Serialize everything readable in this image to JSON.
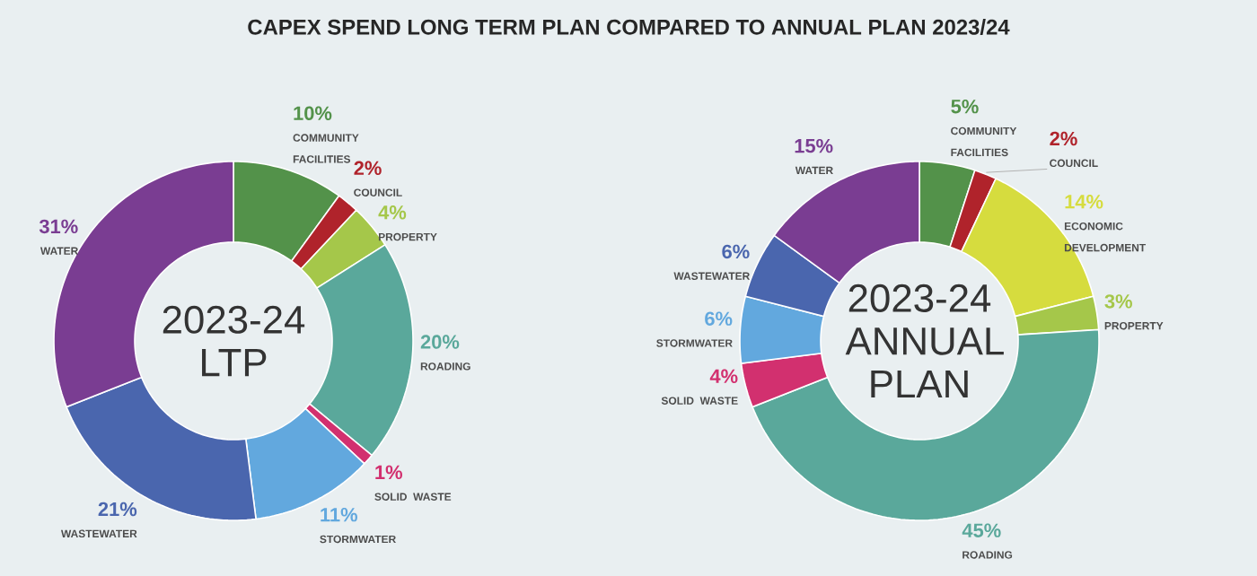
{
  "chart_data": [
    {
      "type": "donut",
      "title": "CAPEX SPEND LONG TERM PLAN COMPARED TO ANNUAL PLAN 2023/24",
      "annotations": [
        "2023-24 LTP"
      ],
      "categories": [
        "COMMUNITY FACILITIES",
        "COUNCIL",
        "PROPERTY",
        "ROADING",
        "SOLID WASTE",
        "STORMWATER",
        "WASTEWATER",
        "WATER"
      ],
      "values": [
        10,
        2,
        4,
        20,
        1,
        11,
        21,
        31
      ],
      "value_labels": [
        "10%",
        "2%",
        "4%",
        "20%",
        "1%",
        "11%",
        "21%",
        "31%"
      ],
      "colors": [
        "#53924a",
        "#b0232b",
        "#a5c74a",
        "#5aa89b",
        "#d2306f",
        "#62a8de",
        "#4a66ae",
        "#7a3d92"
      ]
    },
    {
      "type": "donut",
      "annotations": [
        "2023-24 ANNUAL PLAN"
      ],
      "categories": [
        "COMMUNITY FACILITIES",
        "COUNCIL",
        "ECONOMIC DEVELOPMENT",
        "PROPERTY",
        "ROADING",
        "SOLID WASTE",
        "STORMWATER",
        "WASTEWATER",
        "WATER"
      ],
      "values": [
        5,
        2,
        14,
        3,
        45,
        4,
        6,
        6,
        15
      ],
      "value_labels": [
        "5%",
        "2%",
        "14%",
        "3%",
        "45%",
        "4%",
        "6%",
        "6%",
        "15%"
      ],
      "colors": [
        "#53924a",
        "#b0232b",
        "#d6dc3e",
        "#a5c74a",
        "#5aa89b",
        "#d2306f",
        "#62a8de",
        "#4a66ae",
        "#7a3d92"
      ]
    }
  ]
}
